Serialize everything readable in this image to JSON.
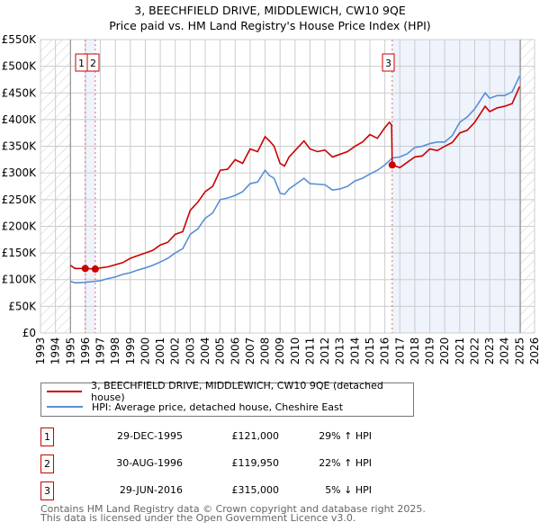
{
  "chart_data": {
    "type": "line",
    "title": "3, BEECHFIELD DRIVE, MIDDLEWICH, CW10 9QE",
    "subtitle": "Price paid vs. HM Land Registry's House Price Index (HPI)",
    "xlim": [
      1993,
      2026
    ],
    "ylim": [
      0,
      550000
    ],
    "x_ticks": [
      "1993",
      "1994",
      "1995",
      "1996",
      "1997",
      "1998",
      "1999",
      "2000",
      "2001",
      "2002",
      "2003",
      "2004",
      "2005",
      "2006",
      "2007",
      "2008",
      "2009",
      "2010",
      "2011",
      "2012",
      "2013",
      "2014",
      "2015",
      "2016",
      "2017",
      "2018",
      "2019",
      "2020",
      "2021",
      "2022",
      "2023",
      "2024",
      "2025",
      "2026"
    ],
    "y_ticks": [
      {
        "v": 0,
        "label": "£0"
      },
      {
        "v": 50000,
        "label": "£50K"
      },
      {
        "v": 100000,
        "label": "£100K"
      },
      {
        "v": 150000,
        "label": "£150K"
      },
      {
        "v": 200000,
        "label": "£200K"
      },
      {
        "v": 250000,
        "label": "£250K"
      },
      {
        "v": 300000,
        "label": "£300K"
      },
      {
        "v": 350000,
        "label": "£350K"
      },
      {
        "v": 400000,
        "label": "£400K"
      },
      {
        "v": 450000,
        "label": "£450K"
      },
      {
        "v": 500000,
        "label": "£500K"
      },
      {
        "v": 550000,
        "label": "£550K"
      }
    ],
    "grid": true,
    "series": [
      {
        "name": "3, BEECHFIELD DRIVE, MIDDLEWICH, CW10 9QE (detached house)",
        "color": "#cc0000",
        "x": [
          1995,
          1995.3,
          1996,
          1996.66,
          1997,
          1997.5,
          1998,
          1998.5,
          1999,
          1999.5,
          2000,
          2000.5,
          2001,
          2001.5,
          2002,
          2002.5,
          2003,
          2003.5,
          2004,
          2004.5,
          2005,
          2005.5,
          2006,
          2006.5,
          2007,
          2007.5,
          2008,
          2008.3,
          2008.6,
          2009,
          2009.3,
          2009.6,
          2010,
          2010.6,
          2011,
          2011.5,
          2012,
          2012.5,
          2013,
          2013.5,
          2014,
          2014.5,
          2015,
          2015.5,
          2016,
          2016.3,
          2016.45,
          2016.49,
          2017,
          2017.5,
          2018,
          2018.5,
          2019,
          2019.5,
          2020,
          2020.5,
          2021,
          2021.5,
          2022,
          2022.7,
          2023,
          2023.5,
          2024,
          2024.5,
          2025
        ],
        "y": [
          127000,
          121000,
          121000,
          119950,
          122000,
          124000,
          128000,
          132000,
          140000,
          145000,
          150000,
          155000,
          165000,
          170000,
          185000,
          190000,
          230000,
          245000,
          265000,
          275000,
          305000,
          307000,
          325000,
          318000,
          345000,
          340000,
          368000,
          360000,
          350000,
          318000,
          313000,
          330000,
          342000,
          360000,
          345000,
          340000,
          343000,
          330000,
          335000,
          340000,
          350000,
          358000,
          372000,
          365000,
          385000,
          395000,
          390000,
          315000,
          310000,
          320000,
          330000,
          332000,
          345000,
          342000,
          350000,
          357000,
          375000,
          380000,
          395000,
          425000,
          415000,
          422000,
          425000,
          430000,
          462000
        ]
      },
      {
        "name": "HPI: Average price, detached house, Cheshire East",
        "color": "#5b8fd4",
        "x": [
          1995,
          1995.3,
          1996,
          1996.66,
          1997,
          1997.5,
          1998,
          1998.5,
          1999,
          1999.5,
          2000,
          2000.5,
          2001,
          2001.5,
          2002,
          2002.5,
          2003,
          2003.5,
          2004,
          2004.5,
          2005,
          2005.5,
          2006,
          2006.5,
          2007,
          2007.5,
          2008,
          2008.3,
          2008.6,
          2009,
          2009.3,
          2009.6,
          2010,
          2010.6,
          2011,
          2011.5,
          2012,
          2012.5,
          2013,
          2013.5,
          2014,
          2014.5,
          2015,
          2015.5,
          2016,
          2016.49,
          2017,
          2017.5,
          2018,
          2018.5,
          2019,
          2019.5,
          2020,
          2020.5,
          2021,
          2021.5,
          2022,
          2022.7,
          2023,
          2023.5,
          2024,
          2024.5,
          2025
        ],
        "y": [
          97000,
          94000,
          95000,
          97000,
          98000,
          102000,
          105000,
          110000,
          113000,
          118000,
          122000,
          127000,
          133000,
          140000,
          150000,
          158000,
          185000,
          195000,
          215000,
          225000,
          250000,
          253000,
          258000,
          265000,
          280000,
          283000,
          305000,
          295000,
          290000,
          262000,
          260000,
          270000,
          278000,
          290000,
          280000,
          279000,
          278000,
          268000,
          270000,
          275000,
          285000,
          290000,
          298000,
          305000,
          315000,
          328000,
          330000,
          336000,
          348000,
          350000,
          355000,
          358000,
          358000,
          370000,
          395000,
          405000,
          420000,
          450000,
          440000,
          445000,
          445000,
          452000,
          482000
        ]
      }
    ],
    "sales": [
      {
        "label": "1",
        "x": 1995.99,
        "y": 121000
      },
      {
        "label": "2",
        "x": 1996.66,
        "y": 119950
      },
      {
        "label": "3",
        "x": 2016.49,
        "y": 315000
      }
    ],
    "legend_placement": "below"
  },
  "legend": [
    "3, BEECHFIELD DRIVE, MIDDLEWICH, CW10 9QE (detached house)",
    "HPI: Average price, detached house, Cheshire East"
  ],
  "table": [
    {
      "n": "1",
      "date": "29-DEC-1995",
      "price": "£121,000",
      "change": "29% ↑ HPI"
    },
    {
      "n": "2",
      "date": "30-AUG-1996",
      "price": "£119,950",
      "change": "22% ↑ HPI"
    },
    {
      "n": "3",
      "date": "29-JUN-2016",
      "price": "£315,000",
      "change": "5% ↓ HPI"
    }
  ],
  "footer": [
    "Contains HM Land Registry data © Crown copyright and database right 2025.",
    "This data is licensed under the Open Government Licence v3.0."
  ]
}
